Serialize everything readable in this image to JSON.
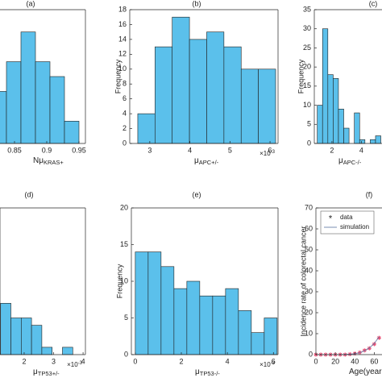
{
  "chart_data": [
    {
      "type": "histogram",
      "title": "(a)",
      "xlabel": "Nμ",
      "xlabel_sub": "KRAS+",
      "bins": [
        0.815,
        0.8375,
        0.86,
        0.8825,
        0.905,
        0.9275,
        0.95
      ],
      "values": [
        7,
        11,
        15,
        11,
        9,
        3
      ],
      "color": "#5bc0eb",
      "xlim": [
        0.8,
        0.96
      ],
      "xticks": [
        0.85,
        0.9,
        0.95
      ],
      "ylim": [
        0,
        18
      ]
    },
    {
      "type": "histogram",
      "title": "(b)",
      "ylabel": "Frequency",
      "xlabel": "μ",
      "xlabel_sub": "APC+/-",
      "x_exponent": {
        "base": "×10",
        "power": "-3"
      },
      "bins": [
        2.7,
        3.13,
        3.56,
        3.99,
        4.42,
        4.85,
        5.28,
        5.71,
        6.14
      ],
      "values": [
        4,
        13,
        17,
        14,
        15,
        13,
        10,
        10
      ],
      "color": "#5bc0eb",
      "xlim": [
        2.5,
        6.2
      ],
      "xticks": [
        3,
        4,
        5,
        6
      ],
      "ylim": [
        0,
        18
      ],
      "yticks": [
        0,
        2,
        4,
        6,
        8,
        10,
        12,
        14,
        16,
        18
      ]
    },
    {
      "type": "histogram",
      "title": "(c)",
      "ylabel": "Frequency",
      "xlabel": "μ",
      "xlabel_sub": "APC-/-",
      "bins": [
        1,
        1.36,
        1.72,
        2.08,
        2.44,
        2.8,
        3.16,
        3.52,
        3.88,
        4.24,
        4.6,
        4.96,
        5.32
      ],
      "values": [
        10,
        30,
        18,
        17,
        9,
        4,
        0,
        8,
        1,
        0,
        1,
        2
      ],
      "color": "#5bc0eb",
      "xlim": [
        0.8,
        5.4
      ],
      "xticks": [
        2,
        4
      ],
      "ylim": [
        0,
        35
      ],
      "yticks": [
        0,
        5,
        10,
        15,
        20,
        25,
        30,
        35
      ]
    },
    {
      "type": "histogram",
      "title": "(d)",
      "xlabel": "μ",
      "xlabel_sub": "TP53+/-",
      "x_exponent": {
        "base": "×10",
        "power": "-3"
      },
      "bins": [
        1.2,
        1.55,
        1.9,
        2.25,
        2.6,
        2.95,
        3.3,
        3.65
      ],
      "values": [
        7,
        5,
        5,
        4,
        1,
        0,
        1
      ],
      "color": "#5bc0eb",
      "xlim": [
        1.18,
        4.08
      ],
      "xticks": [
        2,
        3,
        4
      ],
      "ylim": [
        0,
        20
      ]
    },
    {
      "type": "histogram",
      "title": "(e)",
      "ylabel": "Frequency",
      "xlabel": "μ",
      "xlabel_sub": "TP53-/-",
      "x_exponent": {
        "base": "×10",
        "power": "-3"
      },
      "bins": [
        0,
        0.56,
        1.12,
        1.68,
        2.24,
        2.8,
        3.36,
        3.92,
        4.48,
        5.04,
        5.6,
        6.16
      ],
      "values": [
        14,
        14,
        12,
        9,
        10,
        8,
        8,
        9,
        6,
        3,
        5
      ],
      "color": "#5bc0eb",
      "xlim": [
        -0.17,
        6.2
      ],
      "xticks": [
        0,
        2,
        4,
        6
      ],
      "ylim": [
        0,
        20
      ],
      "yticks": [
        0,
        5,
        10,
        15,
        20
      ]
    },
    {
      "type": "line",
      "title": "(f)",
      "ylabel": "Incidence rate of colorectal cancer",
      "xlabel": "Age(years)",
      "x": [
        0,
        5,
        10,
        15,
        20,
        25,
        30,
        35,
        40,
        45,
        50,
        55,
        60,
        65
      ],
      "series": [
        {
          "name": "data",
          "color": "#e8436b",
          "marker": "*",
          "values": [
            0,
            0,
            0,
            0,
            0,
            0,
            0,
            0.2,
            0.5,
            1,
            2,
            3,
            5,
            8
          ]
        },
        {
          "name": "simulation",
          "color": "#6b7fa8",
          "values": [
            0,
            0,
            0,
            0,
            0,
            0,
            0.1,
            0.2,
            0.4,
            0.9,
            1.8,
            3.2,
            5.3,
            8.5
          ]
        }
      ],
      "xlim": [
        0,
        68
      ],
      "xticks": [
        0,
        20,
        40,
        60
      ],
      "ylim": [
        0,
        70
      ],
      "yticks": [
        0,
        10,
        20,
        30,
        40,
        50,
        60,
        70
      ],
      "legend": "upper left"
    }
  ]
}
